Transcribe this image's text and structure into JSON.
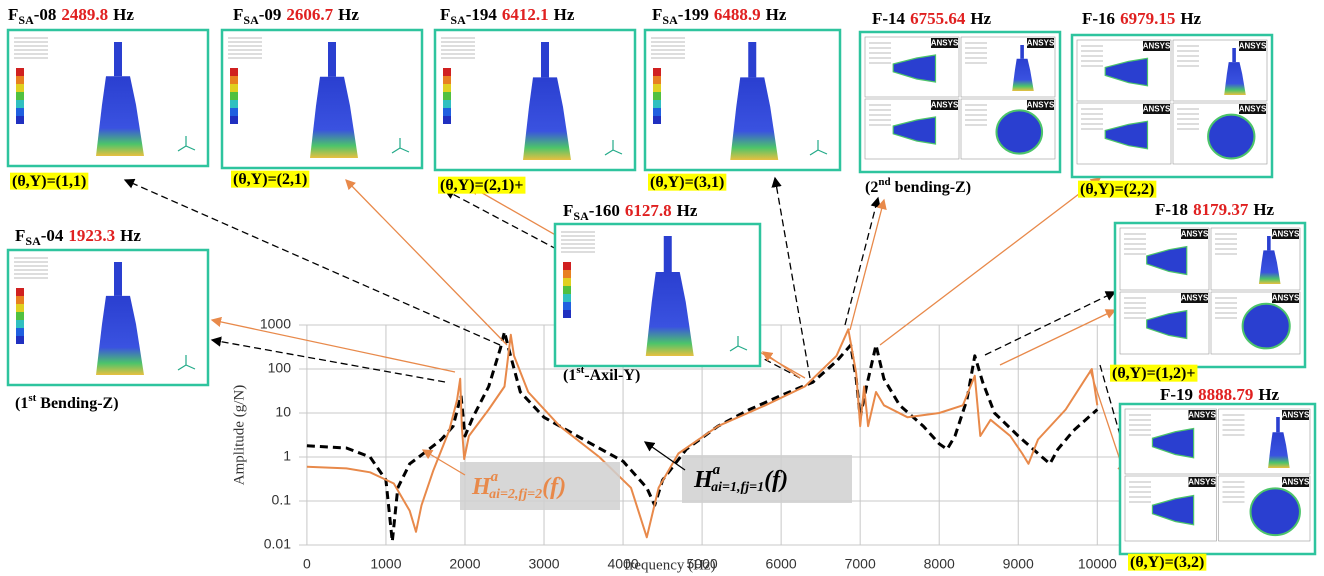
{
  "chart_data": {
    "type": "line",
    "xlabel": "frequency (Hz)",
    "ylabel": "Amplitude (g/N)",
    "xlim": [
      -100,
      10300
    ],
    "xticks": [
      0,
      1000,
      2000,
      3000,
      4000,
      5000,
      6000,
      7000,
      8000,
      9000,
      10000
    ],
    "ylim": [
      0.01,
      1000
    ],
    "yticks": [
      0.01,
      0.1,
      1,
      10,
      100,
      1000
    ],
    "log_y": true,
    "grid": true,
    "series": [
      {
        "color": "#000000",
        "dash": true,
        "x": [
          0,
          500,
          800,
          1000,
          1080,
          1150,
          1300,
          1500,
          1700,
          1850,
          1950,
          2000,
          2100,
          2300,
          2450,
          2500,
          2550,
          2700,
          3000,
          3500,
          4000,
          4300,
          4400,
          4500,
          4800,
          5200,
          5600,
          6000,
          6400,
          6700,
          6880,
          6950,
          7000,
          7080,
          7200,
          7300,
          7500,
          7800,
          8000,
          8100,
          8200,
          8350,
          8450,
          8550,
          8700,
          9000,
          9300,
          9400,
          9500,
          9700,
          10000
        ],
        "values": [
          1.8,
          1.6,
          1.0,
          0.3,
          0.012,
          0.2,
          0.7,
          1.3,
          2.5,
          5,
          25,
          3,
          8,
          40,
          300,
          700,
          300,
          30,
          8,
          2.5,
          0.8,
          0.2,
          0.08,
          0.3,
          1.5,
          5,
          12,
          25,
          50,
          150,
          350,
          60,
          8,
          40,
          350,
          60,
          15,
          5,
          2,
          1.5,
          3,
          20,
          200,
          50,
          10,
          3,
          1,
          0.7,
          1.5,
          4,
          12
        ]
      },
      {
        "color": "#e8894a",
        "dash": false,
        "x": [
          0,
          500,
          800,
          1100,
          1300,
          1380,
          1450,
          1600,
          1800,
          1900,
          1940,
          1960,
          1990,
          2050,
          2300,
          2500,
          2580,
          2620,
          2800,
          3200,
          3700,
          4100,
          4300,
          4450,
          4700,
          5200,
          5800,
          6300,
          6700,
          6850,
          6950,
          7000,
          7050,
          7100,
          7200,
          7300,
          7600,
          8000,
          8300,
          8450,
          8520,
          8650,
          8900,
          9050,
          9130,
          9250,
          9600,
          9850,
          9930,
          10000
        ],
        "values": [
          0.6,
          0.55,
          0.45,
          0.25,
          0.06,
          0.02,
          0.08,
          0.5,
          4,
          20,
          60,
          5,
          0.9,
          3,
          12,
          40,
          600,
          200,
          30,
          5,
          1,
          0.2,
          0.015,
          0.2,
          1.2,
          5,
          15,
          40,
          200,
          800,
          80,
          5,
          40,
          5,
          30,
          15,
          8,
          10,
          15,
          70,
          3,
          7,
          3,
          1.2,
          0.7,
          2.5,
          12,
          60,
          100,
          15
        ]
      }
    ],
    "curve_labels": [
      {
        "h": "H",
        "sup": "a",
        "sub": "ai=2,fj=2",
        "arg": "(f)"
      },
      {
        "h": "H",
        "sup": "a",
        "sub": "ai=1,fj=1",
        "arg": "(f)"
      }
    ]
  },
  "ansys_badge": "ANSYS",
  "panels": [
    {
      "name": "F",
      "sub": "SA",
      "id": "-08",
      "freq": "2489.8",
      "unit": "Hz",
      "label": {
        "text": "(θ,Y)=(1,1)"
      },
      "highlight": true,
      "ansys": false
    },
    {
      "name": "F",
      "sub": "SA",
      "id": "-09",
      "freq": "2606.7",
      "unit": "Hz",
      "label": {
        "text": "(θ,Y)=(2,1)"
      },
      "highlight": true,
      "ansys": false
    },
    {
      "name": "F",
      "sub": "SA",
      "id": "-194",
      "freq": "6412.1",
      "unit": "Hz",
      "label": {
        "text": "(θ,Y)=(2,1)+"
      },
      "highlight": true,
      "ansys": false
    },
    {
      "name": "F",
      "sub": "SA",
      "id": "-199",
      "freq": "6488.9",
      "unit": "Hz",
      "label": {
        "text": "(θ,Y)=(3,1)"
      },
      "highlight": true,
      "ansys": false
    },
    {
      "name": "F",
      "id": "-14",
      "freq": "6755.64",
      "unit": "Hz",
      "label": {
        "text": "(2",
        "sup": "nd",
        "rest": " bending-Z)"
      },
      "highlight": false,
      "ansys": true
    },
    {
      "name": "F",
      "id": "-16",
      "freq": "6979.15",
      "unit": "Hz",
      "label": {
        "text": "(θ,Y)=(2,2)"
      },
      "highlight": true,
      "ansys": true
    },
    {
      "name": "F",
      "sub": "SA",
      "id": "-04",
      "freq": "1923.3",
      "unit": "Hz",
      "label": {
        "text": "(1",
        "sup": "st",
        "rest": " Bending-Z)"
      },
      "highlight": false,
      "ansys": false
    },
    {
      "name": "F",
      "sub": "SA",
      "id": "-160",
      "freq": "6127.8",
      "unit": "Hz",
      "label": {
        "text": "(1",
        "sup": "st",
        "rest": "-Axil-Y)"
      },
      "highlight": false,
      "ansys": false
    },
    {
      "name": "F",
      "id": "-18",
      "freq": "8179.37",
      "unit": "Hz",
      "label": {
        "text": "(θ,Y)=(1,2)+"
      },
      "highlight": true,
      "ansys": true
    },
    {
      "name": "F",
      "id": "-19",
      "freq": "8888.79",
      "unit": "Hz",
      "label": {
        "text": "(θ,Y)=(3,2)"
      },
      "highlight": true,
      "ansys": true
    }
  ]
}
